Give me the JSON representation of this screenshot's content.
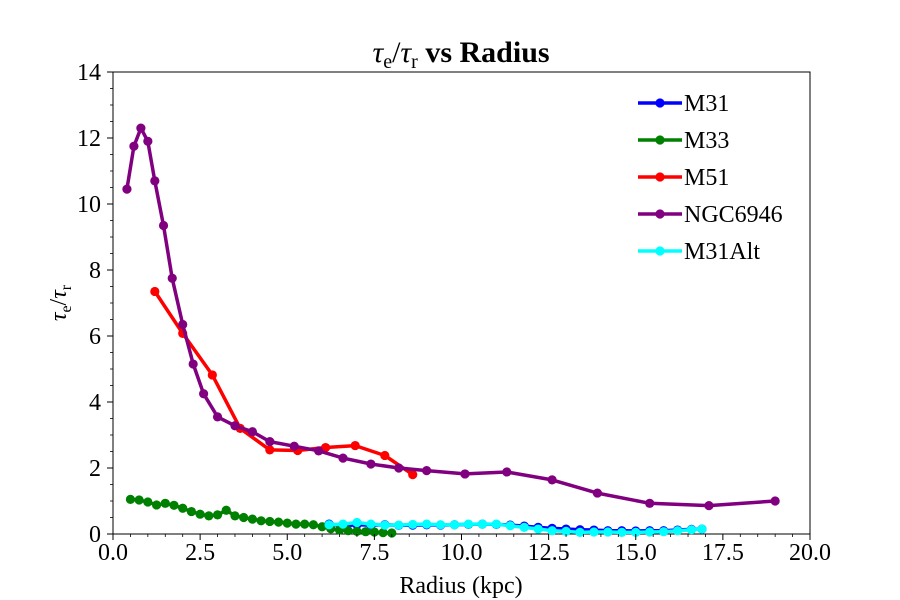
{
  "chart_data": {
    "type": "line",
    "title_parts": {
      "tau": "τ",
      "sub_e": "e",
      "slash": "/",
      "sub_r": "r",
      "rest": " vs Radius"
    },
    "xlabel": "Radius (kpc)",
    "ylabel_parts": {
      "tau": "τ",
      "sub_e": "e",
      "slash": "/",
      "sub_r": "r"
    },
    "xlim": [
      0.0,
      20.0
    ],
    "ylim": [
      0,
      14
    ],
    "xticks": [
      "0.0",
      "2.5",
      "5.0",
      "7.5",
      "10.0",
      "12.5",
      "15.0",
      "17.5",
      "20.0"
    ],
    "yticks": [
      "0",
      "2",
      "4",
      "6",
      "8",
      "10",
      "12",
      "14"
    ],
    "grid": false,
    "legend_position": "top-right",
    "series": [
      {
        "name": "M31",
        "color": "#0000ff",
        "x": [
          6.2,
          6.6,
          7.0,
          7.4,
          7.8,
          8.2,
          8.6,
          9.0,
          9.4,
          9.8,
          10.2,
          10.6,
          11.0,
          11.4,
          11.8,
          12.2,
          12.6,
          13.0,
          13.4,
          13.8,
          14.2,
          14.6,
          15.0,
          15.4,
          15.8,
          16.2,
          16.6,
          16.9
        ],
        "y": [
          0.3,
          0.25,
          0.28,
          0.27,
          0.28,
          0.26,
          0.27,
          0.28,
          0.27,
          0.28,
          0.29,
          0.3,
          0.29,
          0.27,
          0.24,
          0.2,
          0.17,
          0.15,
          0.13,
          0.12,
          0.1,
          0.1,
          0.09,
          0.1,
          0.1,
          0.12,
          0.14,
          0.15
        ]
      },
      {
        "name": "M33",
        "color": "#008000",
        "x": [
          0.5,
          0.75,
          1.0,
          1.25,
          1.5,
          1.75,
          2.0,
          2.25,
          2.5,
          2.75,
          3.0,
          3.25,
          3.5,
          3.75,
          4.0,
          4.25,
          4.5,
          4.75,
          5.0,
          5.25,
          5.5,
          5.75,
          6.0,
          6.25,
          6.5,
          6.75,
          7.0,
          7.25,
          7.5,
          7.75,
          8.0
        ],
        "y": [
          1.05,
          1.03,
          0.97,
          0.88,
          0.93,
          0.87,
          0.78,
          0.68,
          0.6,
          0.55,
          0.58,
          0.72,
          0.55,
          0.5,
          0.45,
          0.4,
          0.38,
          0.36,
          0.33,
          0.3,
          0.3,
          0.28,
          0.22,
          0.16,
          0.12,
          0.1,
          0.08,
          0.07,
          0.06,
          0.04,
          0.03
        ]
      },
      {
        "name": "M51",
        "color": "#ff0000",
        "x": [
          1.2,
          2.0,
          2.85,
          3.65,
          4.5,
          5.3,
          6.1,
          6.95,
          7.8,
          8.6
        ],
        "y": [
          7.35,
          6.08,
          4.82,
          3.2,
          2.55,
          2.53,
          2.62,
          2.68,
          2.38,
          1.8
        ]
      },
      {
        "name": "NGC6946",
        "color": "#800080",
        "x": [
          0.4,
          0.6,
          0.8,
          1.0,
          1.2,
          1.45,
          1.7,
          2.0,
          2.3,
          2.6,
          3.0,
          3.5,
          4.0,
          4.5,
          5.2,
          5.9,
          6.6,
          7.4,
          8.2,
          9.0,
          10.1,
          11.3,
          12.6,
          13.9,
          15.4,
          17.1,
          19.0
        ],
        "y": [
          10.45,
          11.75,
          12.3,
          11.9,
          10.7,
          9.35,
          7.75,
          6.35,
          5.15,
          4.25,
          3.55,
          3.28,
          3.1,
          2.8,
          2.66,
          2.52,
          2.3,
          2.12,
          2.0,
          1.92,
          1.82,
          1.88,
          1.64,
          1.24,
          0.93,
          0.86,
          1.0
        ]
      },
      {
        "name": "M31Alt",
        "color": "#00ffff",
        "x": [
          6.2,
          6.6,
          7.0,
          7.4,
          7.8,
          8.2,
          8.6,
          9.0,
          9.4,
          9.8,
          10.2,
          10.6,
          11.0,
          11.4,
          11.8,
          12.2,
          12.6,
          13.0,
          13.4,
          13.8,
          14.2,
          14.6,
          15.0,
          15.4,
          15.8,
          16.2,
          16.6,
          16.9
        ],
        "y": [
          0.28,
          0.3,
          0.35,
          0.3,
          0.27,
          0.27,
          0.29,
          0.3,
          0.28,
          0.28,
          0.3,
          0.3,
          0.3,
          0.25,
          0.2,
          0.15,
          0.1,
          0.08,
          0.05,
          0.06,
          0.06,
          0.05,
          0.05,
          0.06,
          0.07,
          0.1,
          0.13,
          0.15
        ]
      }
    ]
  }
}
